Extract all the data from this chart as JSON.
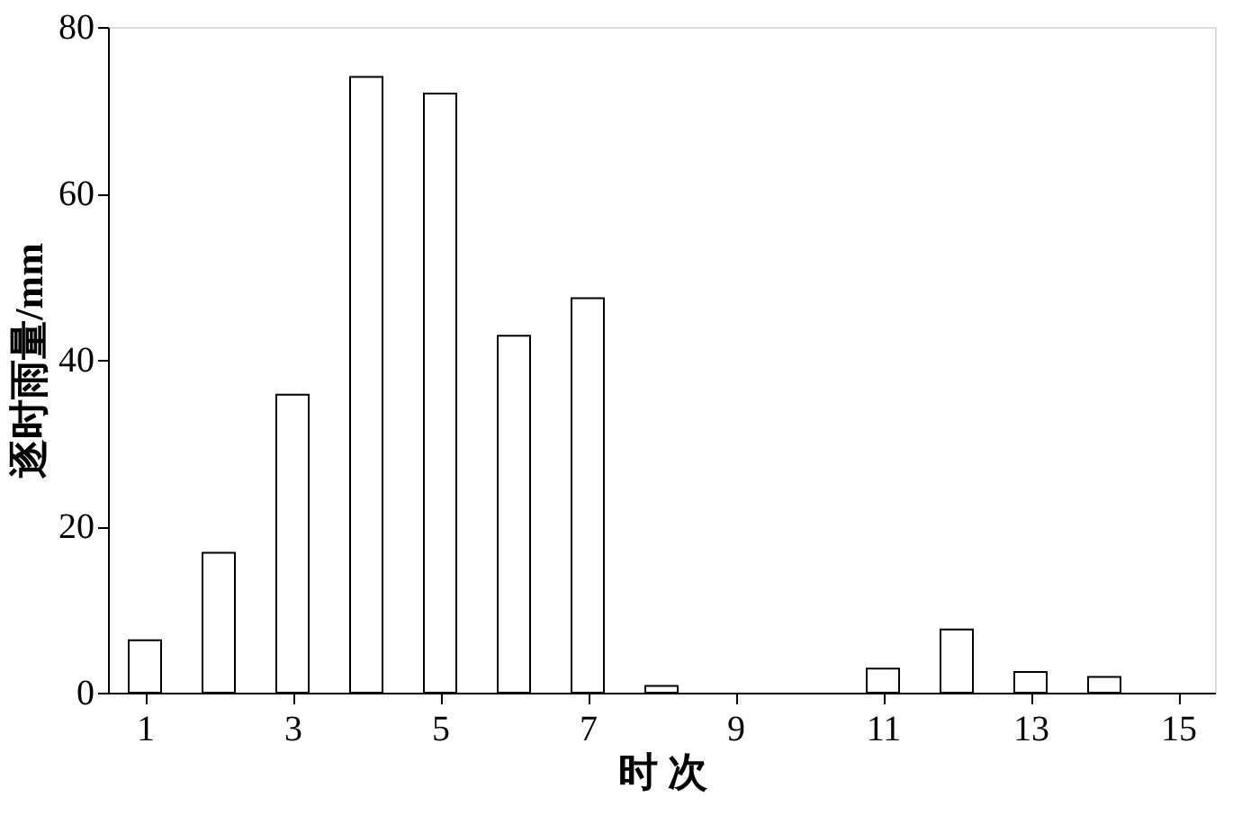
{
  "chart_data": {
    "type": "bar",
    "xlabel": "时   次",
    "ylabel": "逐时雨量/mm",
    "x": [
      1,
      2,
      3,
      4,
      5,
      6,
      7,
      8,
      9,
      10,
      11,
      12,
      13,
      14
    ],
    "values": [
      6.3,
      16.8,
      35.8,
      74,
      72,
      42.9,
      47.4,
      0.8,
      null,
      null,
      2.9,
      7.6,
      2.5,
      1.9
    ],
    "color": "#ffffff",
    "xlim": [
      0.5,
      15.5
    ],
    "xticks": [
      1,
      3,
      5,
      7,
      9,
      11,
      13,
      15
    ],
    "ylim": [
      0,
      80
    ],
    "yticks": [
      0,
      20,
      40,
      60,
      80
    ],
    "grid": false
  }
}
